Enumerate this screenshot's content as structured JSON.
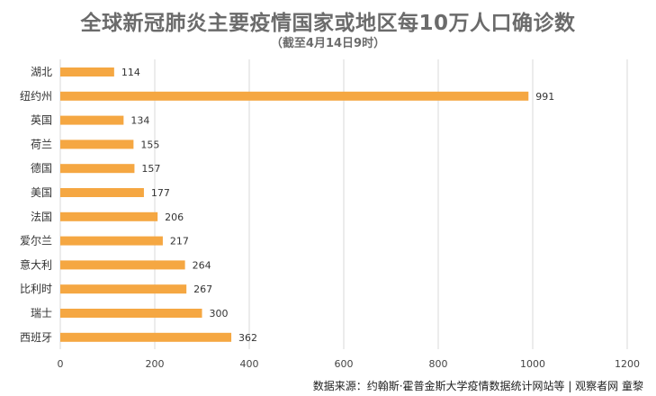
{
  "title": "全球新冠肺炎主要疫情国家或地区每10万人口确诊数",
  "subtitle": "（截至4月14日9时）",
  "footer": "数据来源：约翰斯·霍普金斯大学疫情数据统计网站等 | 观察者网 童黎",
  "colors": {
    "bar": "#F5A742",
    "grid": "#d9d9d9",
    "text": "#333333",
    "title": "#6b6b6b"
  },
  "chart_data": {
    "type": "bar",
    "orientation": "horizontal",
    "title": "全球新冠肺炎主要疫情国家或地区每10万人口确诊数",
    "subtitle": "（截至4月14日9时）",
    "categories": [
      "湖北",
      "纽约州",
      "英国",
      "荷兰",
      "德国",
      "美国",
      "法国",
      "爱尔兰",
      "意大利",
      "比利时",
      "瑞士",
      "西班牙"
    ],
    "values": [
      114,
      991,
      134,
      155,
      157,
      177,
      206,
      217,
      264,
      267,
      300,
      362
    ],
    "xlim": [
      0,
      1200
    ],
    "xticks": [
      0,
      200,
      400,
      600,
      800,
      1000,
      1200
    ],
    "xlabel": "",
    "ylabel": "",
    "grid": true,
    "legend": "none"
  }
}
